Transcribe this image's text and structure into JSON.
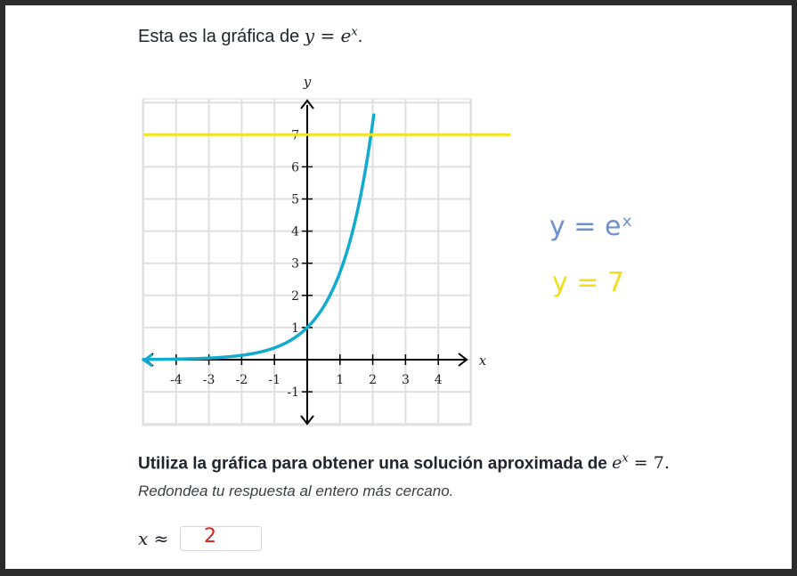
{
  "intro": {
    "prefix": "Esta es la gráfica de ",
    "math": "y = e",
    "exp": "x",
    "suffix": "."
  },
  "chart_data": {
    "type": "line",
    "xlabel": "x",
    "ylabel": "y",
    "xlim": [
      -5,
      5
    ],
    "ylim": [
      -2,
      8
    ],
    "grid": true,
    "x_ticks": [
      -4,
      -3,
      -2,
      -1,
      1,
      2,
      3,
      4
    ],
    "y_ticks": [
      -1,
      1,
      2,
      3,
      4,
      5,
      6,
      7
    ],
    "series": [
      {
        "function": "exp",
        "color": "#11accd",
        "x": [
          -5.0,
          -4.0,
          -3.0,
          -2.0,
          -1.0,
          0.0,
          1.0,
          1.5,
          2.0,
          2.03
        ],
        "y": [
          0.007,
          0.018,
          0.05,
          0.135,
          0.368,
          1.0,
          2.718,
          4.482,
          7.389,
          7.6
        ]
      },
      {
        "function": "constant",
        "color": "#f4e31b",
        "x": [
          -5.0,
          6.2
        ],
        "y": [
          7,
          7
        ]
      }
    ]
  },
  "annotations": {
    "blue": "y = eˣ",
    "yellow": "y = 7"
  },
  "question": {
    "text": "Utiliza la gráfica para obtener una solución aproximada de ",
    "math": "e",
    "exp": "x",
    "tail": " = 7."
  },
  "hint": "Redondea tu respuesta al entero más cercano.",
  "answer": {
    "label": "x ≈",
    "value": "2"
  }
}
